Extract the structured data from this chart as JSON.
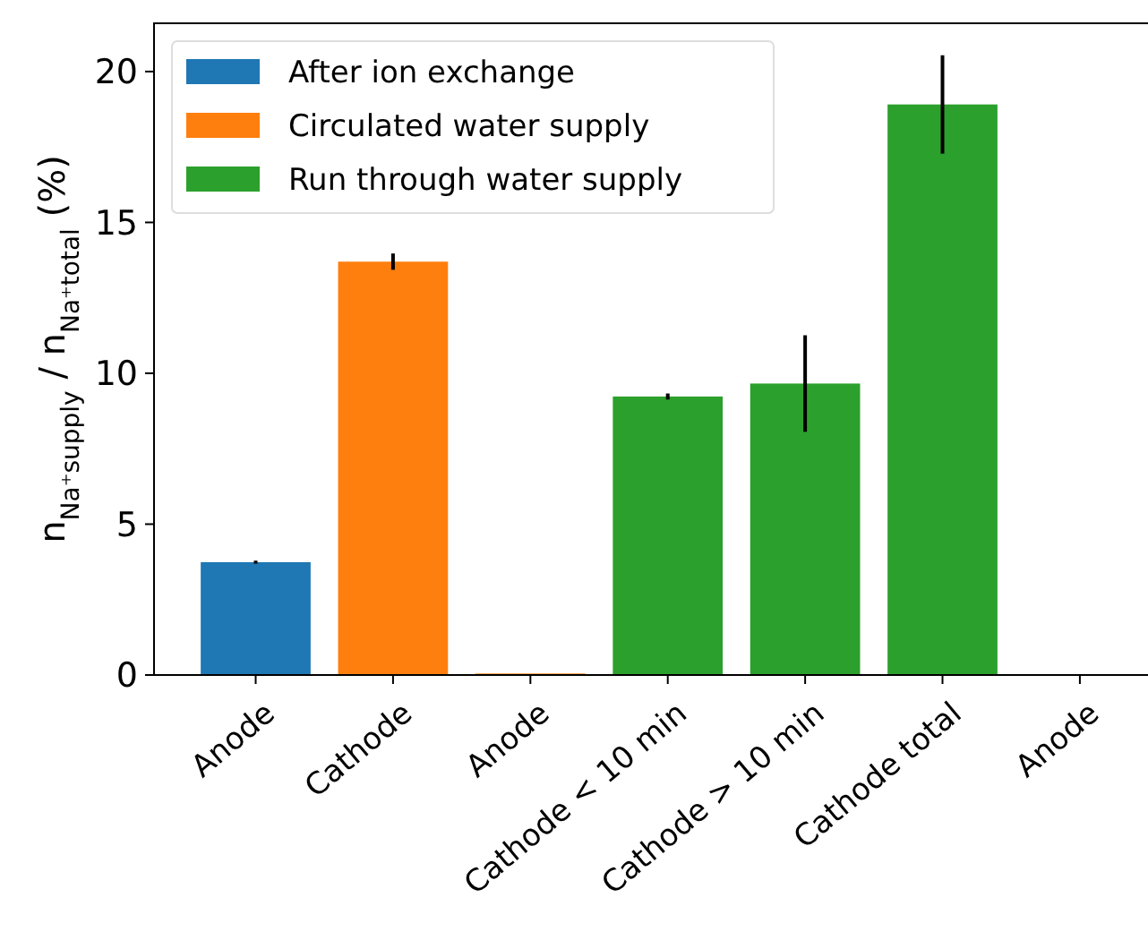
{
  "chart_data": {
    "type": "bar",
    "ylabel": "n$_{Na⁺supply}$ / n$_{Na⁺total}$ (%)",
    "categories": [
      "Anode",
      "Cathode",
      "Anode",
      "Cathode < 10 min",
      "Cathode > 10 min",
      "Cathode total",
      "Anode"
    ],
    "series": [
      {
        "name": "After ion exchange",
        "color": "#1f77b4",
        "values": [
          3.74,
          null,
          null,
          null,
          null,
          null,
          null
        ],
        "errors": [
          0.05,
          null,
          null,
          null,
          null,
          null,
          null
        ]
      },
      {
        "name": "Circulated water supply",
        "color": "#ff7f0e",
        "values": [
          null,
          13.7,
          0.05,
          null,
          null,
          null,
          null
        ],
        "errors": [
          null,
          0.27,
          null,
          null,
          null,
          null,
          null
        ]
      },
      {
        "name": "Run through water supply",
        "color": "#2ca02c",
        "values": [
          null,
          null,
          null,
          9.23,
          9.66,
          18.91,
          0
        ],
        "errors": [
          null,
          null,
          null,
          0.1,
          1.6,
          1.63,
          null
        ]
      }
    ],
    "ylim": [
      0,
      21.6
    ],
    "yticks": [
      0,
      5,
      10,
      15,
      20
    ],
    "grid": false,
    "legend": "top left"
  }
}
